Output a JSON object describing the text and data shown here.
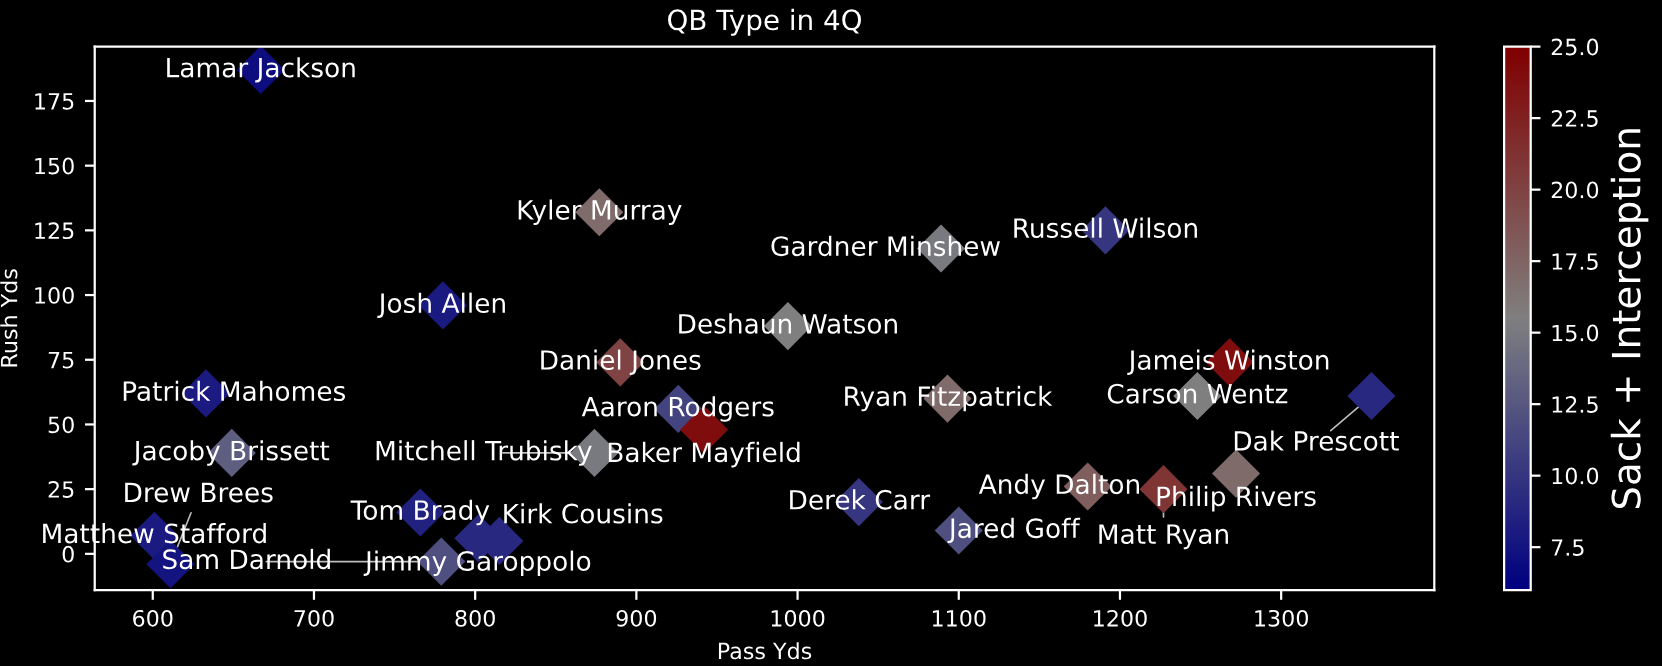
{
  "chart_data": {
    "type": "scatter",
    "title": "QB Type in 4Q",
    "xlabel": "Pass Yds",
    "ylabel": "Rush Yds",
    "clabel": "Sack + Interception",
    "marker": "diamond",
    "grid": false,
    "xlim": [
      564,
      1395
    ],
    "ylim": [
      -14,
      196
    ],
    "xticks": [
      600,
      700,
      800,
      900,
      1000,
      1100,
      1200,
      1300
    ],
    "yticks": [
      0,
      25,
      50,
      75,
      100,
      125,
      150,
      175
    ],
    "clim": [
      6,
      25
    ],
    "cticks": [
      {
        "value": 7.5,
        "label": "7.5"
      },
      {
        "value": 10,
        "label": "10.0"
      },
      {
        "value": 12.5,
        "label": "12.5"
      },
      {
        "value": 15,
        "label": "15.0"
      },
      {
        "value": 17.5,
        "label": "17.5"
      },
      {
        "value": 20,
        "label": "20.0"
      },
      {
        "value": 22.5,
        "label": "22.5"
      },
      {
        "value": 25,
        "label": "25.0"
      }
    ],
    "series": [
      {
        "x": [
          667,
          877,
          780,
          994,
          890,
          633,
          926,
          942,
          649,
          874,
          766,
          802,
          815,
          779,
          601,
          611,
          1191,
          1089,
          1268,
          1093,
          1248,
          1356,
          1272,
          1180,
          1227,
          1038,
          1100
        ],
        "values": [
          187,
          132,
          96,
          88,
          74,
          62,
          56,
          48,
          39,
          39,
          16,
          6,
          5,
          -3,
          7,
          -4,
          125,
          118,
          74,
          60,
          61,
          61,
          31,
          26,
          25,
          20,
          9
        ],
        "cvalues": [
          7,
          17,
          8,
          15.5,
          20,
          8,
          11,
          24,
          13,
          15,
          8.5,
          9,
          9,
          12,
          8,
          7.5,
          10,
          15,
          24,
          17,
          15.5,
          9,
          17,
          18,
          21,
          10,
          12
        ]
      }
    ],
    "annotations": [
      {
        "text": "Lamar Jackson",
        "x": 667,
        "y": 187
      },
      {
        "text": "Kyler Murray",
        "x": 877,
        "y": 132
      },
      {
        "text": "Josh Allen",
        "x": 780,
        "y": 96
      },
      {
        "text": "Deshaun Watson",
        "x": 994,
        "y": 88
      },
      {
        "text": "Daniel Jones",
        "x": 890,
        "y": 74
      },
      {
        "text": "Patrick Mahomes",
        "x": 633,
        "y": 62
      },
      {
        "text": "Aaron Rodgers",
        "x": 926,
        "y": 56
      },
      {
        "text": "Baker Mayfield",
        "x": 942,
        "y": 48
      },
      {
        "text": "Jacoby Brissett",
        "x": 649,
        "y": 39
      },
      {
        "text": "Mitchell Trubisky",
        "x": 874,
        "y": 39
      },
      {
        "text": "Tom Brady",
        "x": 766,
        "y": 16
      },
      {
        "text": "Jimmy Garoppolo",
        "x": 802,
        "y": 6
      },
      {
        "text": "Kirk Cousins",
        "x": 815,
        "y": 5
      },
      {
        "text": "Sam Darnold",
        "x": 779,
        "y": -3
      },
      {
        "text": "Matthew Stafford",
        "x": 601,
        "y": 7
      },
      {
        "text": "Drew Brees",
        "x": 611,
        "y": -4
      },
      {
        "text": "Russell Wilson",
        "x": 1191,
        "y": 125
      },
      {
        "text": "Gardner Minshew",
        "x": 1089,
        "y": 118
      },
      {
        "text": "Jameis Winston",
        "x": 1268,
        "y": 74
      },
      {
        "text": "Ryan Fitzpatrick",
        "x": 1093,
        "y": 60
      },
      {
        "text": "Carson Wentz",
        "x": 1248,
        "y": 61
      },
      {
        "text": "Dak Prescott",
        "x": 1356,
        "y": 61
      },
      {
        "text": "Philip Rivers",
        "x": 1272,
        "y": 31
      },
      {
        "text": "Andy Dalton",
        "x": 1180,
        "y": 26
      },
      {
        "text": "Matt Ryan",
        "x": 1227,
        "y": 25
      },
      {
        "text": "Derek Carr",
        "x": 1038,
        "y": 20
      },
      {
        "text": "Jared Goff",
        "x": 1100,
        "y": 9
      }
    ]
  }
}
